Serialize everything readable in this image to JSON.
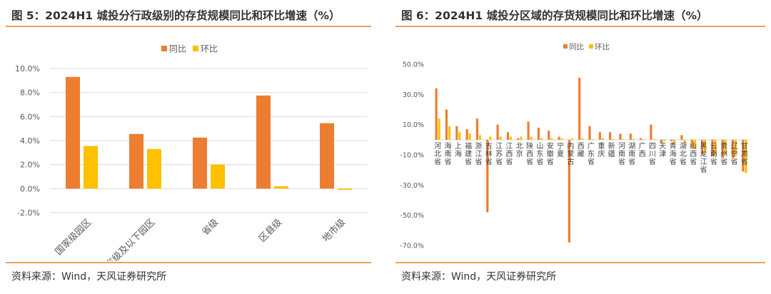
{
  "colors": {
    "yoy": "#ED7D31",
    "qoq": "#FFC000",
    "accent": "#E8A25A",
    "grid": "#D9D9D9"
  },
  "chart_data": [
    {
      "type": "bar",
      "title": "图 5：2024H1 城投分行政级别的存货规模同比和环比增速（%）",
      "source": "资料来源：Wind，天风证券研究所",
      "legend_position": "top-center",
      "grid": true,
      "categories": [
        "国家级园区",
        "省级及以下园区",
        "省级",
        "区县级",
        "地市级"
      ],
      "series": [
        {
          "name": "同比",
          "values": [
            9.3,
            4.55,
            4.25,
            7.75,
            5.45
          ]
        },
        {
          "name": "环比",
          "values": [
            3.55,
            3.3,
            2.0,
            0.2,
            -0.1
          ]
        }
      ],
      "ylim": [
        -2,
        10
      ],
      "yticks": [
        "10.0%",
        "8.0%",
        "6.0%",
        "4.0%",
        "2.0%",
        "0.0%",
        "-2.0%"
      ],
      "xlabel": "",
      "ylabel": ""
    },
    {
      "type": "bar",
      "title": "图 6：2024H1 城投分区域的存货规模同比和环比增速（%）",
      "source": "资料来源：Wind，天风证券研究所",
      "legend_position": "top-center",
      "grid": false,
      "categories": [
        "河北省",
        "海南省",
        "上海",
        "福建省",
        "浙江省",
        "吉林省",
        "江苏省",
        "江西省",
        "北京",
        "陕西省",
        "山东省",
        "安徽省",
        "宁夏",
        "内蒙古",
        "西藏",
        "广东省",
        "重庆",
        "新疆",
        "河南省",
        "湖南省",
        "广西",
        "四川省",
        "天津",
        "青海省",
        "湖北省",
        "山西省",
        "黑龙江省",
        "云南省",
        "贵州省",
        "辽宁省",
        "甘肃省"
      ],
      "series": [
        {
          "name": "同比",
          "values": [
            34,
            20,
            9,
            7,
            14,
            -48,
            10,
            5,
            1,
            12,
            8,
            6,
            2,
            -68,
            41,
            9,
            5,
            5,
            4,
            4,
            1,
            10,
            -2,
            -1,
            3,
            -5,
            -10,
            -11,
            -12,
            -12,
            -21
          ]
        },
        {
          "name": "环比",
          "values": [
            14,
            9,
            5,
            4,
            3,
            2,
            2,
            2,
            2,
            2,
            1,
            1,
            1,
            1,
            1,
            0.5,
            1,
            0.5,
            0.5,
            0.5,
            0.3,
            0.5,
            -1,
            -2,
            -2,
            -6,
            -8,
            -10,
            -10,
            -11,
            -22
          ]
        }
      ],
      "ylim": [
        -70,
        50
      ],
      "yticks": [
        "50.0%",
        "30.0%",
        "10.0%",
        "-10.0%",
        "-30.0%",
        "-50.0%",
        "-70.0%"
      ],
      "xlabel": "",
      "ylabel": ""
    }
  ]
}
